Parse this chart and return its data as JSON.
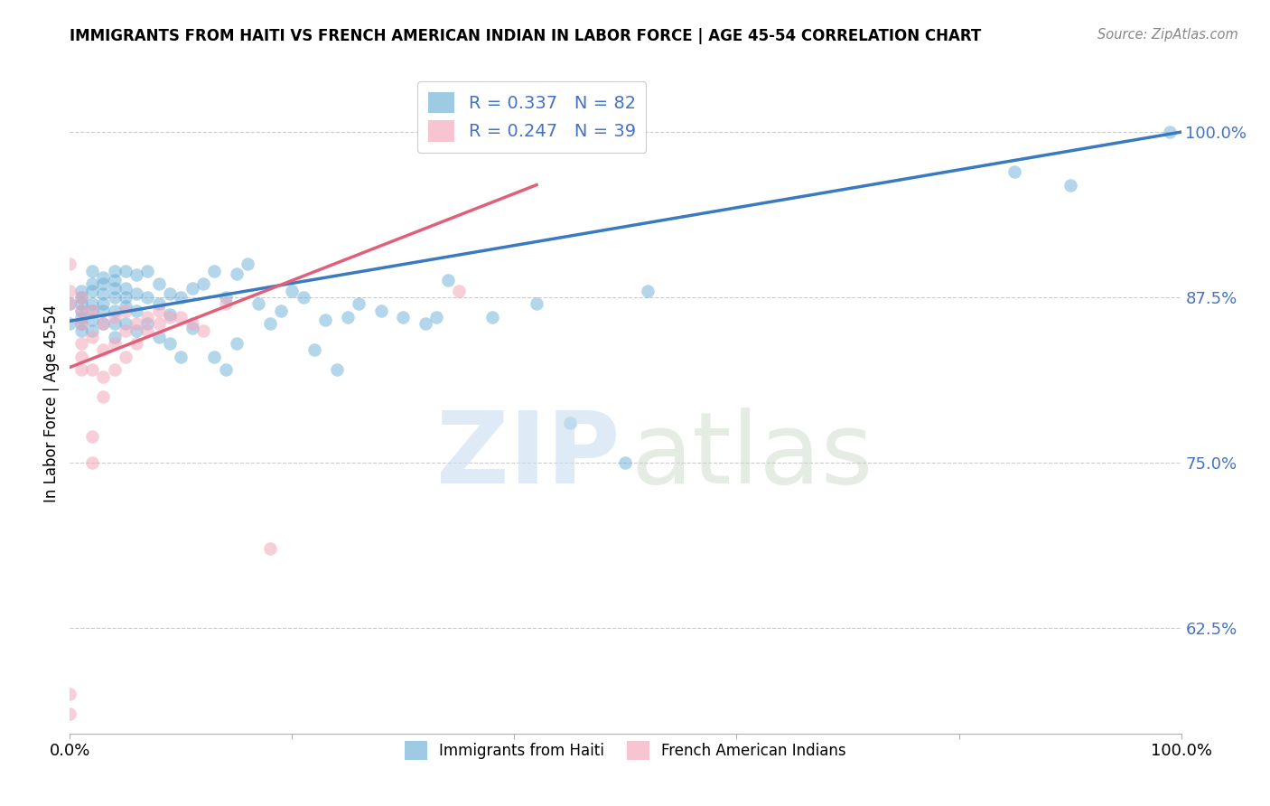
{
  "title": "IMMIGRANTS FROM HAITI VS FRENCH AMERICAN INDIAN IN LABOR FORCE | AGE 45-54 CORRELATION CHART",
  "source": "Source: ZipAtlas.com",
  "ylabel": "In Labor Force | Age 45-54",
  "xlim": [
    0.0,
    1.0
  ],
  "ylim": [
    0.545,
    1.045
  ],
  "ytick_positions": [
    0.625,
    0.75,
    0.875,
    1.0
  ],
  "ytick_labels": [
    "62.5%",
    "75.0%",
    "87.5%",
    "100.0%"
  ],
  "xtick_positions": [
    0.0,
    0.2,
    0.4,
    0.6,
    0.8,
    1.0
  ],
  "xticklabels": [
    "0.0%",
    "",
    "",
    "",
    "",
    "100.0%"
  ],
  "blue_R": 0.337,
  "blue_N": 82,
  "pink_R": 0.247,
  "pink_N": 39,
  "blue_color": "#6baed6",
  "pink_color": "#f4a6bb",
  "blue_line_color": "#3a7abf",
  "pink_line_color": "#e0607a",
  "legend_label_blue": "Immigrants from Haiti",
  "legend_label_pink": "French American Indians",
  "blue_scatter_x": [
    0.0,
    0.0,
    0.01,
    0.01,
    0.01,
    0.01,
    0.01,
    0.01,
    0.01,
    0.02,
    0.02,
    0.02,
    0.02,
    0.02,
    0.02,
    0.02,
    0.03,
    0.03,
    0.03,
    0.03,
    0.03,
    0.03,
    0.04,
    0.04,
    0.04,
    0.04,
    0.04,
    0.04,
    0.04,
    0.05,
    0.05,
    0.05,
    0.05,
    0.05,
    0.06,
    0.06,
    0.06,
    0.06,
    0.07,
    0.07,
    0.07,
    0.08,
    0.08,
    0.08,
    0.09,
    0.09,
    0.09,
    0.1,
    0.1,
    0.11,
    0.11,
    0.12,
    0.13,
    0.13,
    0.14,
    0.14,
    0.15,
    0.15,
    0.16,
    0.17,
    0.18,
    0.19,
    0.2,
    0.21,
    0.22,
    0.23,
    0.24,
    0.25,
    0.26,
    0.28,
    0.3,
    0.32,
    0.33,
    0.34,
    0.38,
    0.42,
    0.45,
    0.5,
    0.52,
    0.85,
    0.9,
    0.99
  ],
  "blue_scatter_y": [
    0.855,
    0.87,
    0.88,
    0.875,
    0.87,
    0.865,
    0.86,
    0.855,
    0.85,
    0.895,
    0.885,
    0.88,
    0.87,
    0.865,
    0.858,
    0.85,
    0.89,
    0.885,
    0.878,
    0.87,
    0.865,
    0.855,
    0.895,
    0.888,
    0.882,
    0.875,
    0.865,
    0.855,
    0.845,
    0.895,
    0.882,
    0.875,
    0.868,
    0.855,
    0.892,
    0.878,
    0.865,
    0.85,
    0.895,
    0.875,
    0.855,
    0.885,
    0.87,
    0.845,
    0.878,
    0.862,
    0.84,
    0.875,
    0.83,
    0.882,
    0.852,
    0.885,
    0.895,
    0.83,
    0.875,
    0.82,
    0.893,
    0.84,
    0.9,
    0.87,
    0.855,
    0.865,
    0.88,
    0.875,
    0.835,
    0.858,
    0.82,
    0.86,
    0.87,
    0.865,
    0.86,
    0.855,
    0.86,
    0.888,
    0.86,
    0.87,
    0.78,
    0.75,
    0.88,
    0.97,
    0.96,
    1.0
  ],
  "pink_scatter_x": [
    0.0,
    0.0,
    0.0,
    0.0,
    0.0,
    0.01,
    0.01,
    0.01,
    0.01,
    0.01,
    0.01,
    0.02,
    0.02,
    0.02,
    0.02,
    0.02,
    0.03,
    0.03,
    0.03,
    0.03,
    0.04,
    0.04,
    0.04,
    0.05,
    0.05,
    0.05,
    0.06,
    0.06,
    0.07,
    0.07,
    0.08,
    0.08,
    0.09,
    0.1,
    0.11,
    0.12,
    0.14,
    0.18,
    0.35
  ],
  "pink_scatter_y": [
    0.56,
    0.575,
    0.87,
    0.88,
    0.9,
    0.82,
    0.83,
    0.84,
    0.855,
    0.865,
    0.875,
    0.75,
    0.77,
    0.82,
    0.845,
    0.865,
    0.8,
    0.815,
    0.835,
    0.855,
    0.82,
    0.84,
    0.86,
    0.83,
    0.85,
    0.865,
    0.84,
    0.855,
    0.85,
    0.86,
    0.855,
    0.865,
    0.86,
    0.86,
    0.855,
    0.85,
    0.87,
    0.685,
    0.88
  ],
  "blue_line_x0": 0.0,
  "blue_line_x1": 1.0,
  "blue_line_y0": 0.857,
  "blue_line_y1": 1.0,
  "pink_line_x0": 0.0,
  "pink_line_x1": 0.42,
  "pink_line_y0": 0.822,
  "pink_line_y1": 0.96
}
